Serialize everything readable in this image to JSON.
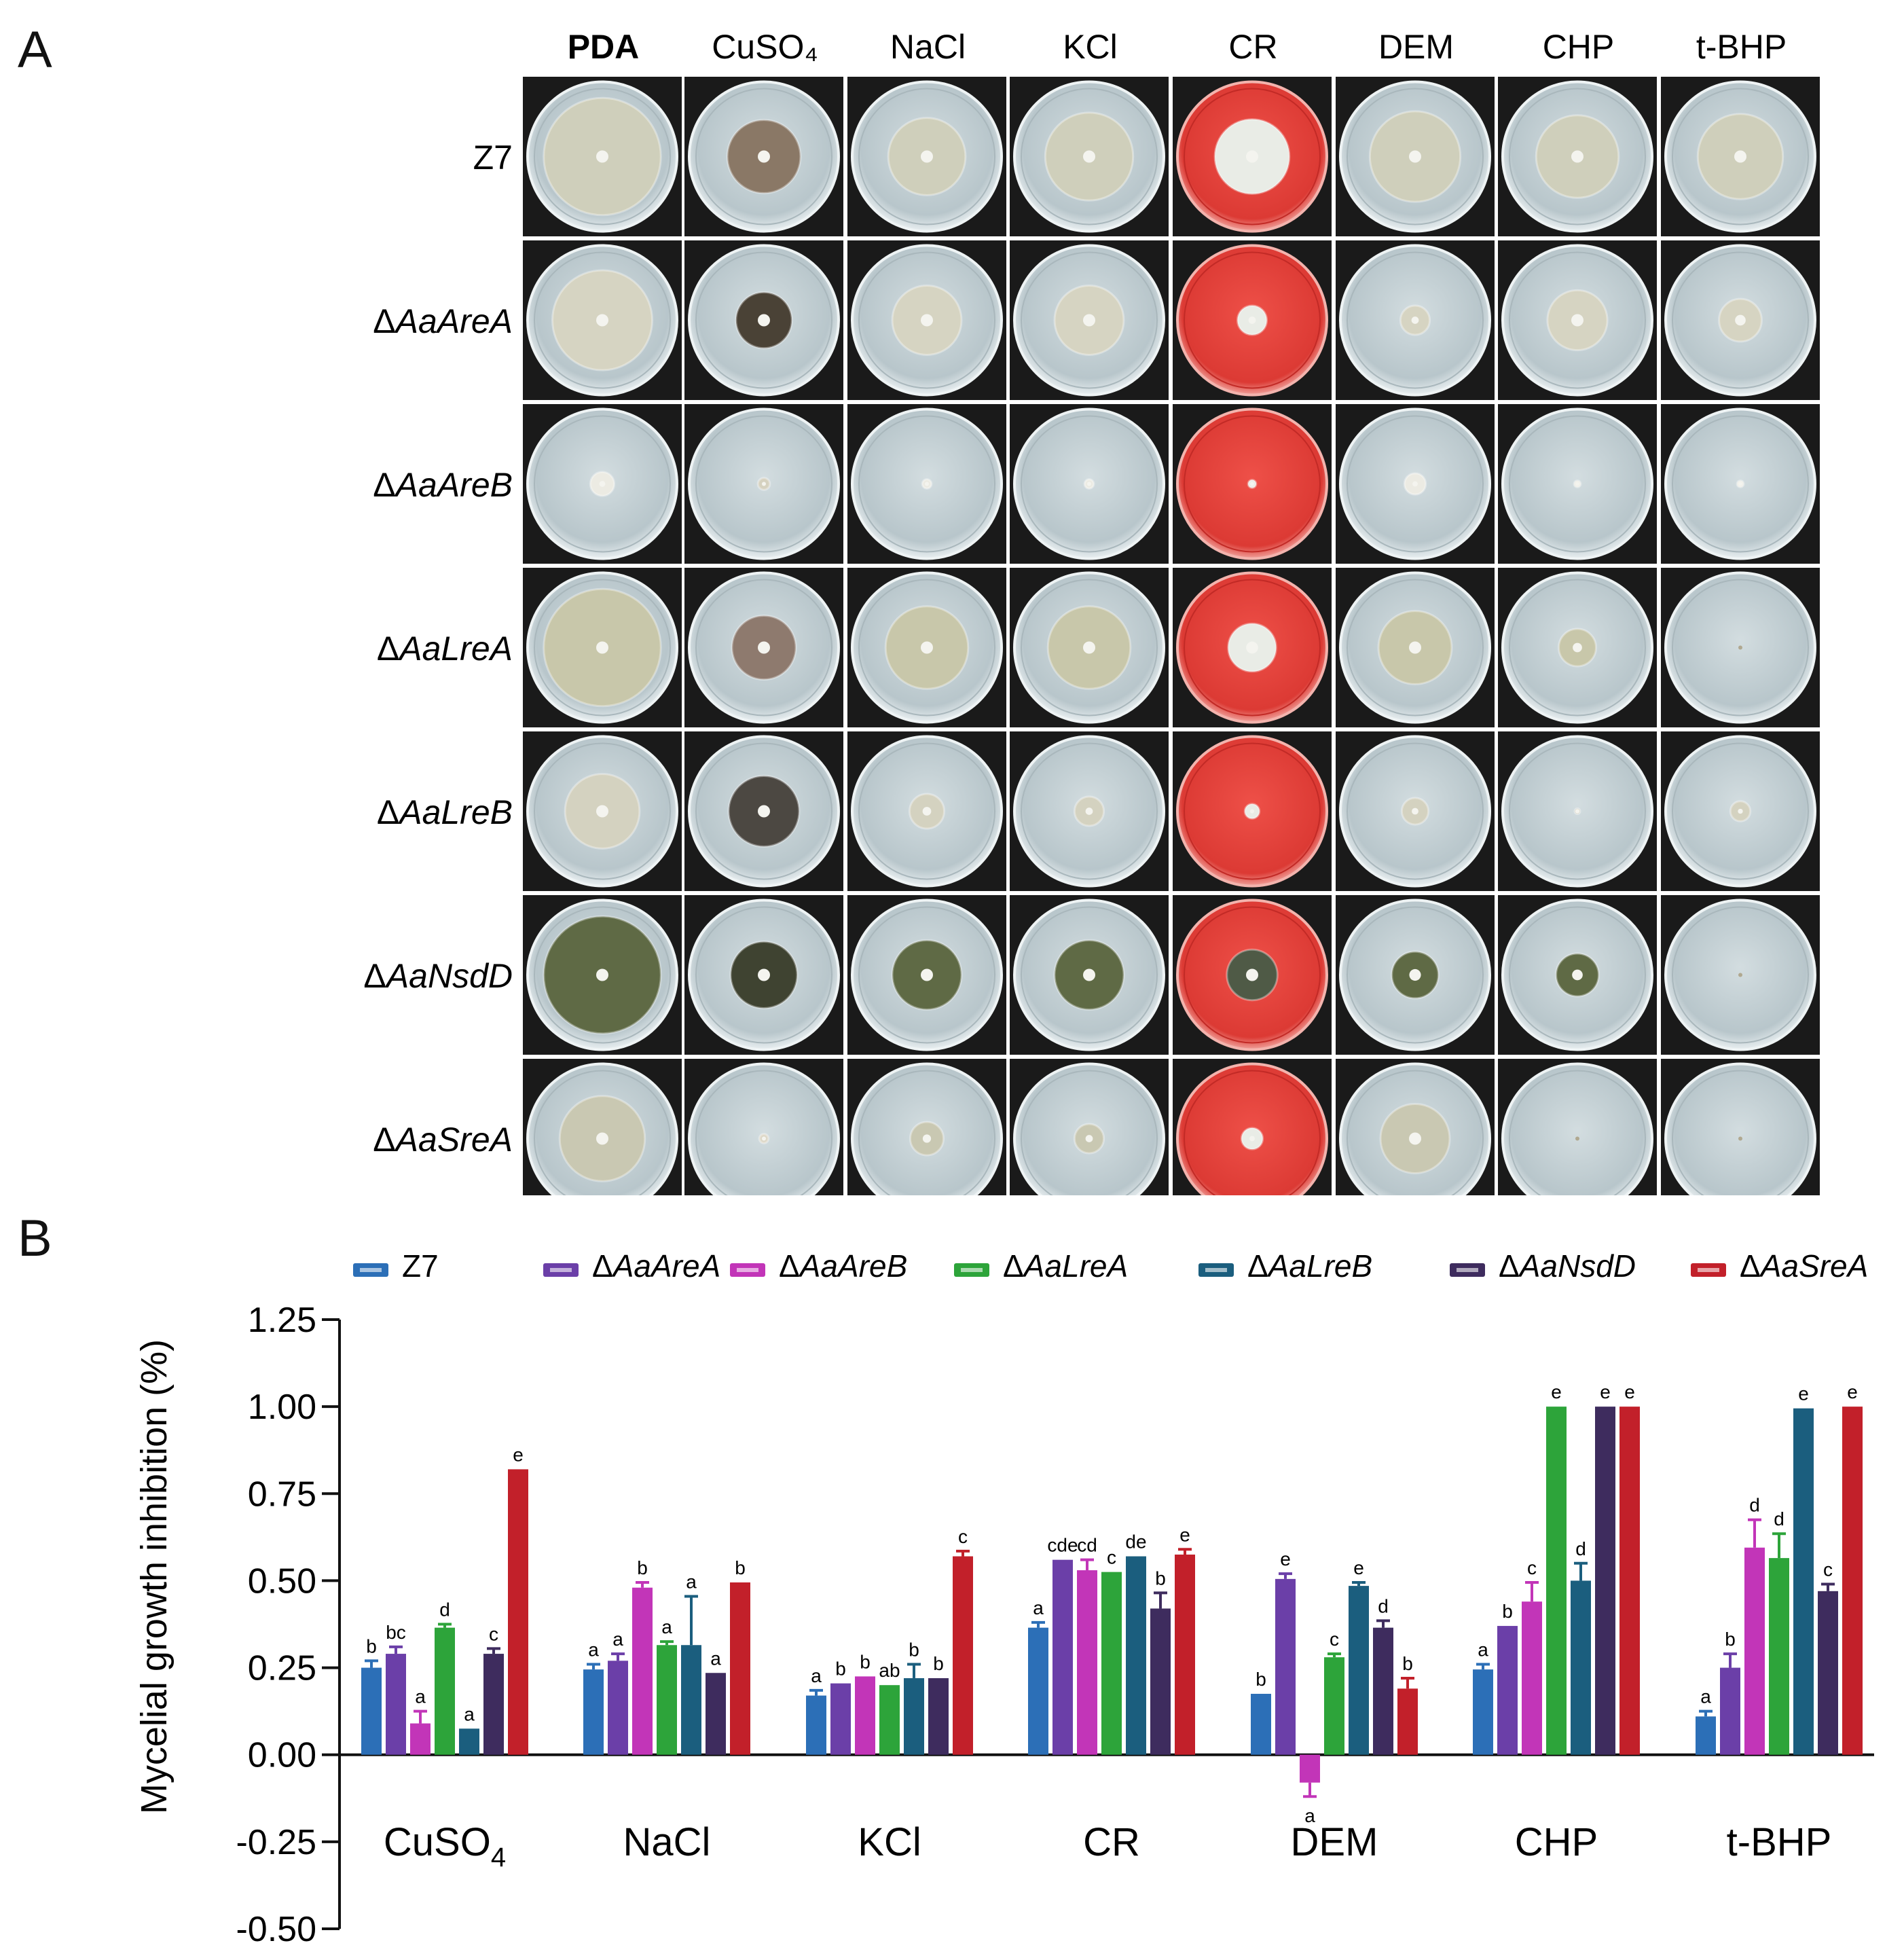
{
  "panel_a": {
    "label": "A",
    "columns": [
      "PDA",
      "CuSO₄",
      "NaCl",
      "KCl",
      "CR",
      "DEM",
      "CHP",
      "t-BHP"
    ],
    "rows": [
      {
        "prefix": "",
        "name": "Z7"
      },
      {
        "prefix": "Δ",
        "name": "AaAreA"
      },
      {
        "prefix": "Δ",
        "name": "AaAreB"
      },
      {
        "prefix": "Δ",
        "name": "AaLreA"
      },
      {
        "prefix": "Δ",
        "name": "AaLreB"
      },
      {
        "prefix": "Δ",
        "name": "AaNsdD"
      },
      {
        "prefix": "Δ",
        "name": "AaSreA"
      }
    ],
    "colony_scale": [
      [
        0.88,
        0.55,
        0.58,
        0.66,
        0.56,
        0.68,
        0.62,
        0.64
      ],
      [
        0.75,
        0.42,
        0.52,
        0.52,
        0.22,
        0.22,
        0.45,
        0.32
      ],
      [
        0.18,
        0.09,
        0.07,
        0.07,
        0.06,
        0.16,
        0.05,
        0.05
      ],
      [
        0.88,
        0.48,
        0.62,
        0.62,
        0.36,
        0.55,
        0.28,
        0.0
      ],
      [
        0.56,
        0.53,
        0.26,
        0.22,
        0.11,
        0.2,
        0.03,
        0.15
      ],
      [
        0.88,
        0.5,
        0.52,
        0.52,
        0.38,
        0.35,
        0.32,
        0.0
      ],
      [
        0.64,
        0.07,
        0.25,
        0.22,
        0.16,
        0.52,
        0.0,
        0.0
      ]
    ],
    "media_colors": {
      "plate": "#c8d4d8",
      "cr_plate": "#e2413b",
      "background": "#1a1a1a"
    },
    "strain_colony_colors": [
      "#cfcfbb",
      "#d6d4c2",
      "#ecebe3",
      "#c8c7aa",
      "#d4d2c0",
      "#5f6a45",
      "#c9c8b2"
    ],
    "cuso4_colony_colors": [
      "#8a7866",
      "#4a4236",
      "#d6d2c0",
      "#8e7a6e",
      "#4c4842",
      "#3f4331",
      "#ddd8c8"
    ]
  },
  "panel_b": {
    "label": "B"
  },
  "chart_data": {
    "type": "bar",
    "title": "",
    "ylabel": "Mycelial growth inhibition (%)",
    "xlabel": "",
    "ylim": [
      -0.5,
      1.25
    ],
    "yticks": [
      "1.25",
      "1.00",
      "0.75",
      "0.50",
      "0.25",
      "0.00",
      "-0.25",
      "-0.50"
    ],
    "ytick_values": [
      1.25,
      1.0,
      0.75,
      0.5,
      0.25,
      0.0,
      -0.25,
      -0.5
    ],
    "grid": false,
    "legend_position": "top",
    "categories": [
      {
        "base": "CuSO",
        "sub": "4"
      },
      {
        "base": "NaCl",
        "sub": ""
      },
      {
        "base": "KCl",
        "sub": ""
      },
      {
        "base": "CR",
        "sub": ""
      },
      {
        "base": "DEM",
        "sub": ""
      },
      {
        "base": "CHP",
        "sub": ""
      },
      {
        "base": "t-BHP",
        "sub": ""
      }
    ],
    "series": [
      {
        "prefix": "",
        "name": "Z7",
        "color": "#2c6fb7",
        "values": [
          0.25,
          0.245,
          0.17,
          0.365,
          0.175,
          0.245,
          0.11
        ],
        "errors": [
          0.02,
          0.015,
          0.015,
          0.015,
          0.0,
          0.015,
          0.015
        ],
        "letters": [
          "b",
          "a",
          "a",
          "a",
          "b",
          "a",
          "a"
        ]
      },
      {
        "prefix": "Δ",
        "name": "AaAreA",
        "color": "#6b3fa8",
        "values": [
          0.29,
          0.27,
          0.205,
          0.56,
          0.505,
          0.37,
          0.25
        ],
        "errors": [
          0.02,
          0.02,
          0.0,
          0.0,
          0.015,
          0.0,
          0.04
        ],
        "letters": [
          "bc",
          "a",
          "b",
          "cde",
          "e",
          "b",
          "b"
        ]
      },
      {
        "prefix": "Δ",
        "name": "AaAreB",
        "color": "#c235b8",
        "values": [
          0.09,
          0.48,
          0.225,
          0.53,
          -0.08,
          0.44,
          0.595
        ],
        "errors": [
          0.035,
          0.015,
          0.0,
          0.03,
          0.04,
          0.055,
          0.08
        ],
        "letters": [
          "a",
          "b",
          "b",
          "cd",
          "a",
          "c",
          "d"
        ]
      },
      {
        "prefix": "Δ",
        "name": "AaLreA",
        "color": "#2da43a",
        "values": [
          0.365,
          0.315,
          0.2,
          0.525,
          0.28,
          1.0,
          0.565
        ],
        "errors": [
          0.01,
          0.01,
          0.0,
          0.0,
          0.01,
          0.0,
          0.07
        ],
        "letters": [
          "d",
          "a",
          "ab",
          "c",
          "c",
          "e",
          "d"
        ]
      },
      {
        "prefix": "Δ",
        "name": "AaLreB",
        "color": "#1b5e7e",
        "values": [
          0.075,
          0.315,
          0.22,
          0.57,
          0.485,
          0.5,
          0.995
        ],
        "errors": [
          0.0,
          0.14,
          0.04,
          0.0,
          0.01,
          0.05,
          0.0
        ],
        "letters": [
          "a",
          "a",
          "b",
          "de",
          "e",
          "d",
          "e"
        ]
      },
      {
        "prefix": "Δ",
        "name": "AaNsdD",
        "color": "#3e2c5e",
        "values": [
          0.29,
          0.235,
          0.22,
          0.42,
          0.365,
          1.0,
          0.47
        ],
        "errors": [
          0.015,
          0.0,
          0.0,
          0.045,
          0.02,
          0.0,
          0.02
        ],
        "letters": [
          "c",
          "a",
          "b",
          "b",
          "d",
          "e",
          "c"
        ]
      },
      {
        "prefix": "Δ",
        "name": "AaSreA",
        "color": "#c2202a",
        "values": [
          0.82,
          0.495,
          0.57,
          0.575,
          0.19,
          1.0,
          1.0
        ],
        "errors": [
          0.0,
          0.0,
          0.015,
          0.015,
          0.03,
          0.0,
          0.0
        ],
        "letters": [
          "e",
          "b",
          "c",
          "e",
          "b",
          "e",
          "e"
        ]
      }
    ]
  }
}
